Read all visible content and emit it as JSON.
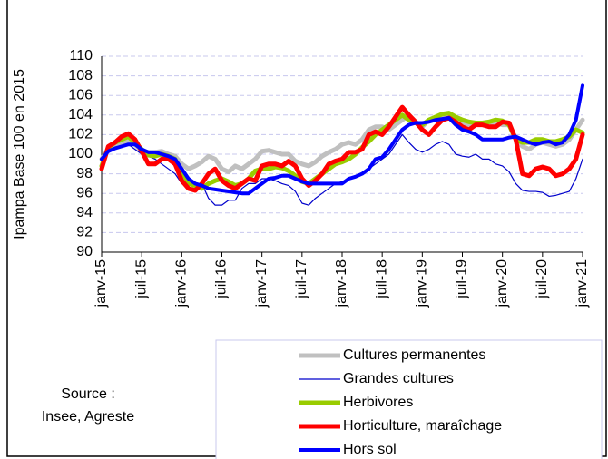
{
  "chart_data": {
    "type": "line",
    "y_label": "Ipampa  Base 100 en 2015",
    "source": [
      "Source :",
      "Insee, Agreste"
    ],
    "categories": [
      "janv-15",
      null,
      null,
      null,
      null,
      null,
      "juil-15",
      null,
      null,
      null,
      null,
      null,
      "janv-16",
      null,
      null,
      null,
      null,
      null,
      "juil-16",
      null,
      null,
      null,
      null,
      null,
      "janv-17",
      null,
      null,
      null,
      null,
      null,
      "juil-17",
      null,
      null,
      null,
      null,
      null,
      "janv-18",
      null,
      null,
      null,
      null,
      null,
      "juil-18",
      null,
      null,
      null,
      null,
      null,
      "janv-19",
      null,
      null,
      null,
      null,
      null,
      "juil-19",
      null,
      null,
      null,
      null,
      null,
      "janv-20",
      null,
      null,
      null,
      null,
      null,
      "juil-20",
      null,
      null,
      null,
      null,
      null,
      "janv-21"
    ],
    "ylim": [
      90,
      110
    ],
    "yticks": [
      90,
      92,
      94,
      96,
      98,
      100,
      102,
      104,
      106,
      108,
      110
    ],
    "grid": true,
    "series": [
      {
        "name": "Cultures permanentes",
        "color": "#c0c0c0",
        "line_width": 5,
        "values": [
          99.5,
          100.5,
          100.8,
          101,
          101.3,
          101,
          100.3,
          100.2,
          100.2,
          100.3,
          100,
          99.8,
          99,
          98.5,
          98.8,
          99.2,
          99.8,
          99.5,
          98.5,
          98.2,
          98.8,
          98.5,
          99,
          99.5,
          100.3,
          100.4,
          100.2,
          100,
          100,
          99.3,
          99,
          98.8,
          99.2,
          99.8,
          100.2,
          100.5,
          101,
          101.2,
          101,
          101.5,
          102.5,
          102.8,
          102.8,
          102.5,
          103,
          103.5,
          104,
          103.3,
          102.8,
          103.5,
          103.5,
          103.7,
          103.8,
          103.5,
          103.3,
          103,
          103.2,
          103,
          103,
          103.2,
          103,
          103,
          101.5,
          100.8,
          100.5,
          101,
          101.2,
          101,
          100.8,
          101,
          101.5,
          102.5,
          103.5
        ]
      },
      {
        "name": "Grandes cultures",
        "color": "#0000cc",
        "line_width": 1.2,
        "values": [
          99,
          100.3,
          100.5,
          100.8,
          101,
          100.5,
          100,
          99.8,
          99.5,
          99,
          98.5,
          98,
          97,
          96.5,
          96.5,
          97,
          95.5,
          94.8,
          94.8,
          95.3,
          95.3,
          96.5,
          97,
          97,
          97.5,
          97.5,
          97.3,
          97,
          96.8,
          96.2,
          95,
          94.8,
          95.5,
          96,
          96.5,
          97,
          97.2,
          97.5,
          97.8,
          98,
          98.5,
          99,
          99.5,
          100,
          101,
          102,
          101.2,
          100.5,
          100.2,
          100.5,
          101,
          101.3,
          101,
          100,
          99.8,
          99.7,
          100,
          99.5,
          99.5,
          99,
          98.8,
          98.2,
          97,
          96.3,
          96.2,
          96.2,
          96.1,
          95.7,
          95.8,
          96,
          96.2,
          97.5,
          99.5
        ]
      },
      {
        "name": "Herbivores",
        "color": "#99cc00",
        "line_width": 5,
        "values": [
          98.8,
          100.7,
          101.2,
          101.5,
          101.8,
          101.2,
          100.5,
          99.9,
          99.8,
          100,
          99.8,
          99.5,
          98,
          97,
          96.8,
          96.5,
          97,
          97.3,
          97.5,
          97.2,
          96.8,
          97,
          97.5,
          98.3,
          98.5,
          98.5,
          98.7,
          98.6,
          98.3,
          97.8,
          97.2,
          97,
          97.5,
          98,
          98.5,
          99,
          99.2,
          99.5,
          100,
          100.7,
          101.3,
          102,
          102.5,
          103,
          103.5,
          104,
          103.5,
          103.2,
          103,
          103.5,
          103.8,
          104.1,
          104.2,
          103.8,
          103.5,
          103.3,
          103.2,
          103.2,
          103.3,
          103.5,
          103.4,
          103,
          101.5,
          101.2,
          101.2,
          101.5,
          101.5,
          101.3,
          101.3,
          101.5,
          101.8,
          102.5,
          102.2
        ]
      },
      {
        "name": "Horticulture, maraîchage",
        "color": "#ff0000",
        "line_width": 5,
        "values": [
          98.5,
          100.8,
          101.2,
          101.8,
          102.1,
          101.5,
          100.3,
          99,
          99,
          99.5,
          99.5,
          99,
          97.3,
          96.5,
          96.3,
          97,
          98,
          98.5,
          97.3,
          96.8,
          96.5,
          97,
          97.5,
          97.3,
          98.8,
          99,
          99,
          98.8,
          99.3,
          98.8,
          97.5,
          96.8,
          97.3,
          98,
          99,
          99.3,
          99.5,
          100.2,
          100.2,
          100.5,
          102,
          102.3,
          102,
          102.8,
          103.8,
          104.8,
          104,
          103.3,
          102.5,
          102,
          102.8,
          103.5,
          103.7,
          103.3,
          102.8,
          102.5,
          103,
          103,
          102.8,
          102.8,
          103.3,
          103.2,
          101.5,
          98,
          97.8,
          98.5,
          98.7,
          98.5,
          97.8,
          98,
          98.5,
          99.5,
          102
        ]
      },
      {
        "name": "Hors sol",
        "color": "#0000ff",
        "line_width": 4,
        "values": [
          99.5,
          100.3,
          100.6,
          100.8,
          101,
          101,
          100.5,
          100.2,
          100.2,
          100,
          99.8,
          99.5,
          98.5,
          97.5,
          97,
          96.8,
          96.5,
          96.4,
          96.3,
          96.2,
          96.1,
          96,
          96,
          96.5,
          97,
          97.5,
          97.6,
          97.8,
          97.8,
          97.5,
          97.2,
          97,
          97,
          97,
          97,
          97,
          97,
          97.5,
          97.7,
          98,
          98.5,
          99.5,
          99.7,
          100.5,
          101.5,
          102.5,
          103,
          103.2,
          103.2,
          103.3,
          103.5,
          103.6,
          103.7,
          103,
          102.5,
          102.3,
          102,
          101.5,
          101.5,
          101.5,
          101.5,
          101.7,
          101.8,
          101.5,
          101.2,
          101,
          101.2,
          101.3,
          101,
          101.2,
          102,
          103.5,
          107
        ]
      }
    ]
  }
}
